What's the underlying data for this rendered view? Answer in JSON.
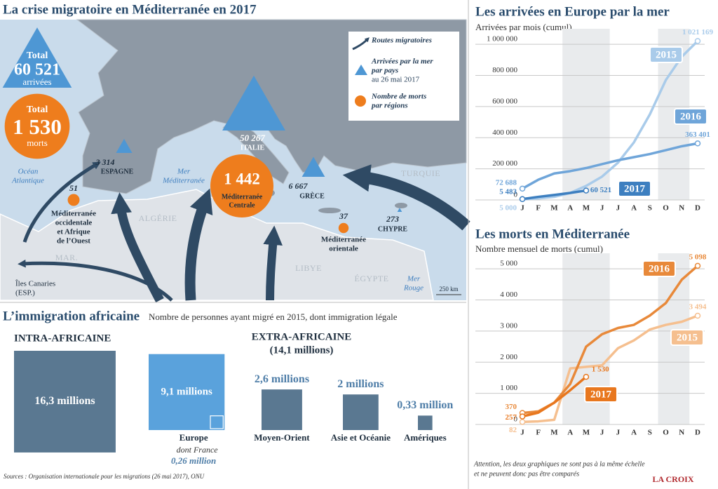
{
  "map": {
    "title": "La crise migratoire en Méditerranée en 2017",
    "total_arrivals": {
      "heading": "Total",
      "value": 60521,
      "label": "60 521",
      "unit": "arrivées"
    },
    "total_deaths": {
      "heading": "Total",
      "value": 1530,
      "label": "1 530",
      "unit": "morts"
    },
    "arrivals": [
      {
        "name": "ESPAGNE",
        "value": 3314,
        "label": "3 314"
      },
      {
        "name": "ITALIE",
        "value": 50267,
        "label": "50 267"
      },
      {
        "name": "GRÈCE",
        "value": 6667,
        "label": "6 667"
      },
      {
        "name": "CHYPRE",
        "value": 273,
        "label": "273"
      }
    ],
    "deaths": [
      {
        "name": [
          "Méditerranée",
          "Centrale"
        ],
        "value": 1442,
        "label": "1 442"
      },
      {
        "name": [
          "Méditerranée",
          "occidentale",
          "et Afrique",
          "de l’Ouest"
        ],
        "value": 51,
        "label": "51"
      },
      {
        "name": [
          "Méditerranée",
          "orientale"
        ],
        "value": 37,
        "label": "37"
      }
    ],
    "legend": {
      "routes": "Routes migratoires",
      "arrivals": [
        "Arrivées par la mer",
        "par pays"
      ],
      "arrivals_date": "au 26 mai 2017",
      "deaths": [
        "Nombre de morts",
        "par régions"
      ]
    },
    "places": [
      [
        "Océan",
        "Atlantique"
      ],
      [
        "Mer",
        "Méditerranée"
      ],
      [
        "ALGÉRIE"
      ],
      [
        "MAR."
      ],
      [
        "LIBYE"
      ],
      [
        "ÉGYPTE"
      ],
      [
        "Mer",
        "Rouge"
      ],
      [
        "TURQUIE"
      ],
      [
        "Îles Canaries",
        "(ESP.)"
      ]
    ],
    "scale": "250 km"
  },
  "immigration": {
    "title": "L’immigration africaine",
    "subtitle": "Nombre de personnes ayant migré en 2015, dont immigration légale",
    "intra": {
      "heading": "INTRA-AFRICAINE",
      "value": 16.3,
      "label": "16,3 millions"
    },
    "extra": {
      "heading": "EXTRA-AFRICAINE",
      "total_label": "(14,1 millions)"
    },
    "destinations": [
      {
        "name": "Europe",
        "value": 9.1,
        "label": "9,1 millions",
        "sub_name": "dont France",
        "sub_value": 0.26,
        "sub_label": "0,26 million"
      },
      {
        "name": "Moyen-Orient",
        "value": 2.6,
        "label": "2,6 millions"
      },
      {
        "name": "Asie et Océanie",
        "value": 2,
        "label": "2 millions"
      },
      {
        "name": "Amériques",
        "value": 0.33,
        "label": "0,33 million"
      }
    ]
  },
  "sources": "Sources : Organisation internationale pour les migrations (26 mai 2017), ONU",
  "note": [
    "Attention, les deux graphiques ne sont pas à la même échelle",
    "et ne peuvent donc pas être comparés"
  ],
  "logo": "LA CROIX",
  "chart_data": [
    {
      "type": "line",
      "title": "Les arrivées en Europe par la mer",
      "subtitle": "Arrivées par mois (cumul)",
      "categories": [
        "J",
        "F",
        "M",
        "A",
        "M",
        "J",
        "J",
        "A",
        "S",
        "O",
        "N",
        "D"
      ],
      "ylim": [
        0,
        1100000
      ],
      "yticks": [
        0,
        {
          "value": 200000,
          "label": "200 000"
        },
        {
          "value": 400000,
          "label": "400 000"
        },
        {
          "value": 600000,
          "label": "600 000"
        },
        {
          "value": 800000,
          "label": "800 000"
        },
        {
          "value": 1000000,
          "label": "1 000 000"
        }
      ],
      "grid": true,
      "series": [
        {
          "name": "2015",
          "color": "#a9cbea",
          "values": [
            5000,
            10000,
            20000,
            45000,
            90000,
            150000,
            240000,
            370000,
            550000,
            770000,
            920000,
            1021169
          ],
          "value_labels": [
            "5 000",
            null,
            null,
            null,
            null,
            null,
            null,
            null,
            null,
            null,
            null,
            "1 021 169"
          ]
        },
        {
          "name": "2016",
          "color": "#6fa5d9",
          "values": [
            72688,
            130000,
            170000,
            185000,
            205000,
            230000,
            255000,
            275000,
            295000,
            320000,
            345000,
            363401
          ],
          "value_labels": [
            "72 688",
            null,
            null,
            null,
            null,
            null,
            null,
            null,
            null,
            null,
            null,
            "363 401"
          ]
        },
        {
          "name": "2017",
          "color": "#3d7fc0",
          "values": [
            5483,
            20000,
            32000,
            45000,
            60521,
            null,
            null,
            null,
            null,
            null,
            null,
            null
          ],
          "value_labels": [
            "5 483",
            null,
            null,
            null,
            "60 521",
            null,
            null,
            null,
            null,
            null,
            null,
            null
          ]
        }
      ]
    },
    {
      "type": "line",
      "title": "Les morts en Méditerranée",
      "subtitle": "Nombre mensuel de morts (cumul)",
      "categories": [
        "J",
        "F",
        "M",
        "A",
        "M",
        "J",
        "J",
        "A",
        "S",
        "O",
        "N",
        "D"
      ],
      "ylim": [
        0,
        5500
      ],
      "yticks": [
        0,
        {
          "value": 1000,
          "label": "1 000"
        },
        {
          "value": 2000,
          "label": "2 000"
        },
        {
          "value": 3000,
          "label": "3 000"
        },
        {
          "value": 4000,
          "label": "4 000"
        },
        {
          "value": 5000,
          "label": "5 000"
        }
      ],
      "grid": true,
      "series": [
        {
          "name": "2015",
          "color": "#f5bf8f",
          "values": [
            82,
            100,
            150,
            1800,
            1850,
            1900,
            2450,
            2700,
            3050,
            3200,
            3300,
            3494
          ],
          "value_labels": [
            "82",
            null,
            null,
            null,
            null,
            null,
            null,
            null,
            null,
            null,
            null,
            "3 494"
          ]
        },
        {
          "name": "2016",
          "color": "#e8893a",
          "values": [
            370,
            420,
            700,
            1300,
            2500,
            2900,
            3100,
            3200,
            3500,
            3900,
            4650,
            5098
          ],
          "value_labels": [
            "370",
            null,
            null,
            null,
            null,
            null,
            null,
            null,
            null,
            null,
            null,
            "5 098"
          ]
        },
        {
          "name": "2017",
          "color": "#e8771e",
          "values": [
            257,
            380,
            700,
            1100,
            1530,
            null,
            null,
            null,
            null,
            null,
            null,
            null
          ],
          "value_labels": [
            "257",
            null,
            null,
            null,
            "1 530",
            null,
            null,
            null,
            null,
            null,
            null,
            null
          ]
        }
      ]
    }
  ]
}
